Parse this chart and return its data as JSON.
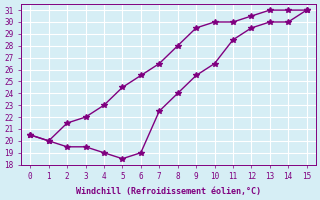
{
  "line1_x": [
    0,
    1,
    2,
    3,
    4,
    5,
    6,
    7,
    8,
    9,
    10,
    11,
    12,
    13,
    14,
    15
  ],
  "line1_y": [
    20.5,
    20.0,
    21.5,
    22.0,
    23.0,
    24.5,
    25.5,
    26.5,
    28.0,
    29.5,
    30.0,
    30.0,
    30.5,
    31.0,
    31.0,
    31.0
  ],
  "line2_x": [
    0,
    1,
    2,
    3,
    4,
    5,
    6,
    7,
    8,
    9,
    10,
    11,
    12,
    13,
    14,
    15
  ],
  "line2_y": [
    20.5,
    20.0,
    19.5,
    19.5,
    19.0,
    18.5,
    19.0,
    22.5,
    24.0,
    25.5,
    26.5,
    28.5,
    29.5,
    30.0,
    30.0,
    31.0
  ],
  "line_color": "#800080",
  "bg_color": "#d6eef5",
  "grid_color": "#ffffff",
  "xlabel": "Windchill (Refroidissement éolien,°C)",
  "ylim": [
    18,
    31.5
  ],
  "xlim": [
    -0.5,
    15.5
  ],
  "yticks": [
    18,
    19,
    20,
    21,
    22,
    23,
    24,
    25,
    26,
    27,
    28,
    29,
    30,
    31
  ],
  "xticks": [
    0,
    1,
    2,
    3,
    4,
    5,
    6,
    7,
    8,
    9,
    10,
    11,
    12,
    13,
    14,
    15
  ]
}
